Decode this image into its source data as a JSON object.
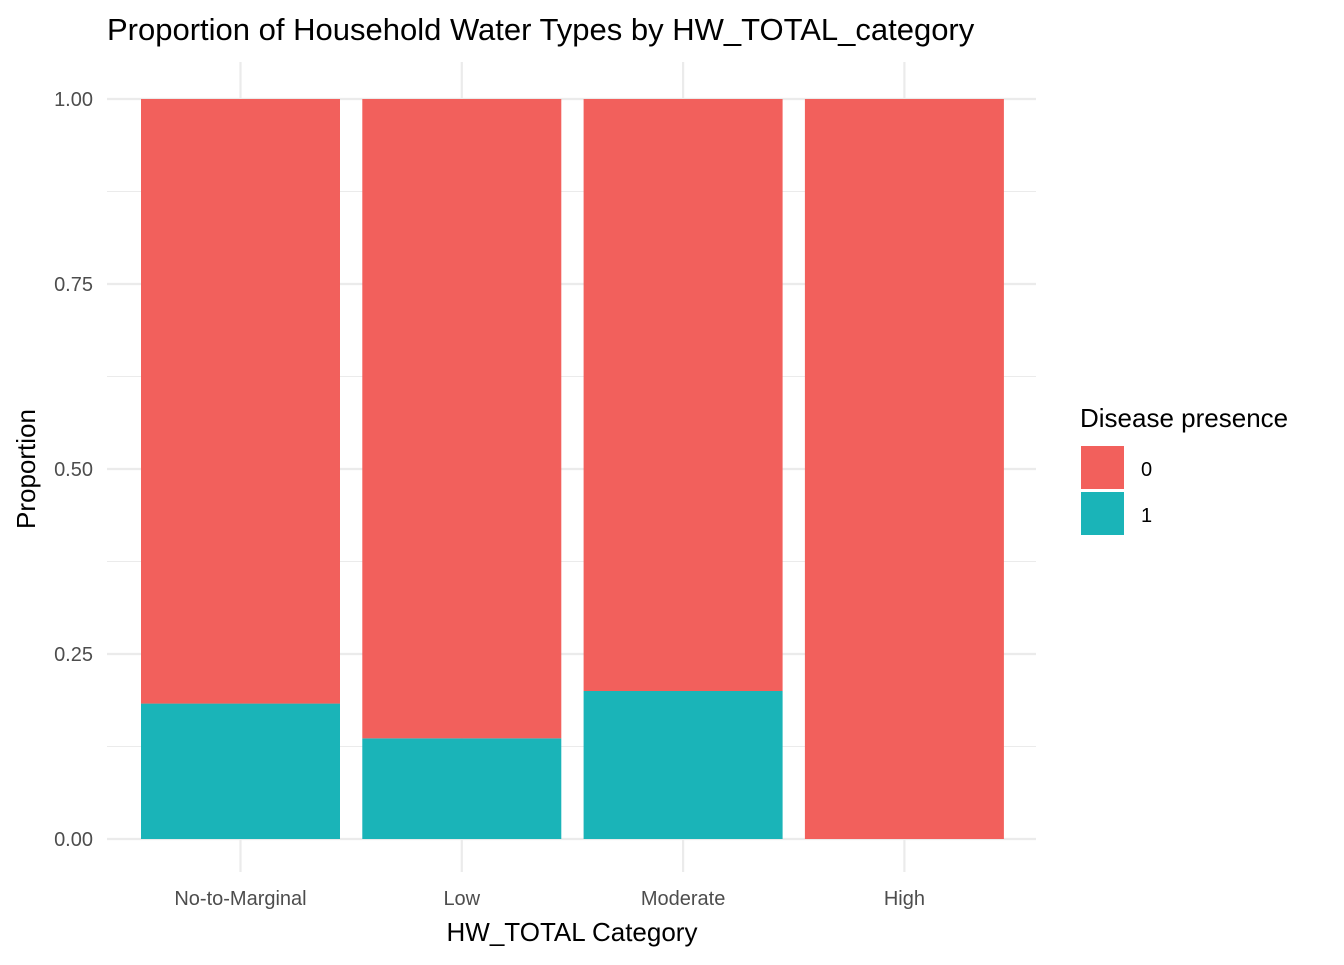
{
  "chart_data": {
    "type": "bar",
    "stacked": true,
    "title": "Proportion of Household Water Types by HW_TOTAL_category",
    "xlabel": "HW_TOTAL Category",
    "ylabel": "Proportion",
    "categories": [
      "No-to-Marginal",
      "Low",
      "Moderate",
      "High"
    ],
    "ylim": [
      0,
      1
    ],
    "yticks": [
      0,
      0.25,
      0.5,
      0.75,
      1
    ],
    "ytick_labels": [
      "0.00",
      "0.25",
      "0.50",
      "0.75",
      "1.00"
    ],
    "grid": true,
    "legend": {
      "title": "Disease presence",
      "position": "right"
    },
    "series": [
      {
        "name": "1",
        "color": "#1AB4B8",
        "values": [
          0.183,
          0.136,
          0.2,
          0.0
        ]
      },
      {
        "name": "0",
        "color": "#F2605C",
        "values": [
          0.817,
          0.864,
          0.8,
          1.0
        ]
      }
    ]
  }
}
